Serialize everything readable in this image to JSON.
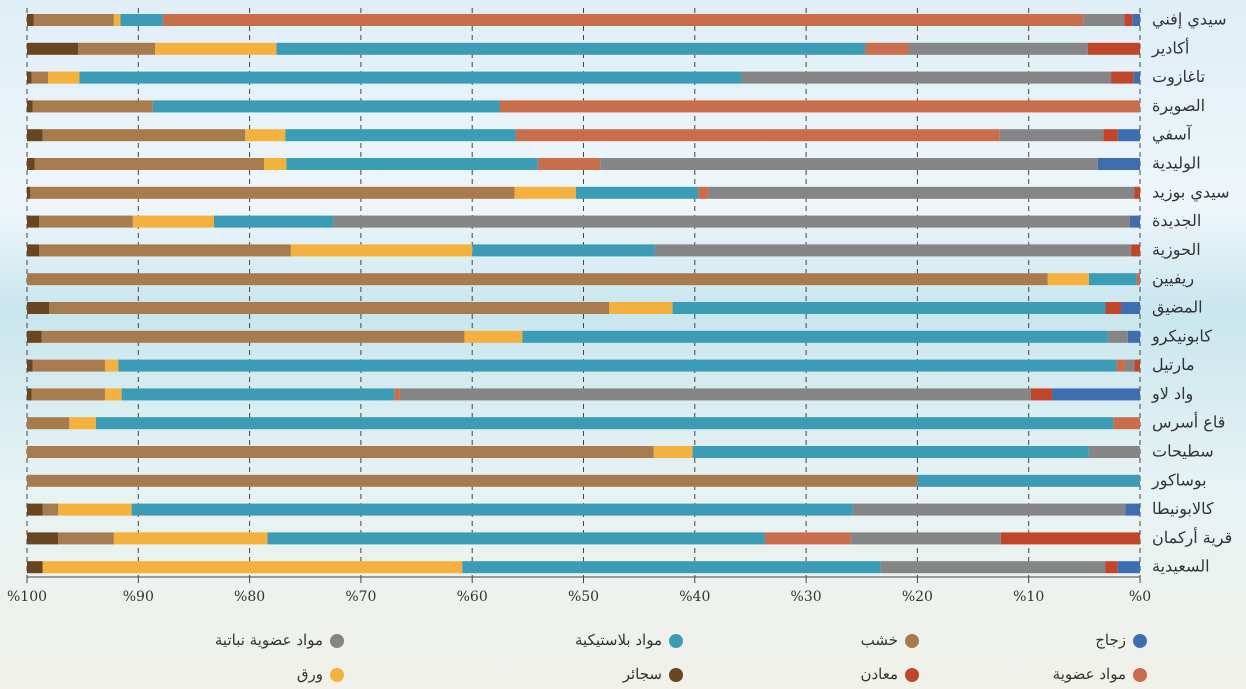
{
  "chart_data": {
    "type": "stacked-bar-horizontal",
    "x_reversed": true,
    "grid": true,
    "categories": [
      "سيدي إفني",
      "أكادير",
      "تاغازوت",
      "الصويرة",
      "آسفي",
      "الوليدية",
      "سيدي بوزيد",
      "الجديدة",
      "الحوزية",
      "ريفيين",
      "المضيق",
      "كابونيكرو",
      "مارتيل",
      "واد لاو",
      "قاع أسرس",
      "سطيحات",
      "بوساكور",
      "كالابونيطا",
      "قرية أركمان",
      "السعيدية"
    ],
    "xlim": [
      0,
      100
    ],
    "xticks": [
      {
        "value": 0,
        "label": "%0"
      },
      {
        "value": 10,
        "label": "%10"
      },
      {
        "value": 20,
        "label": "%20"
      },
      {
        "value": 30,
        "label": "%30"
      },
      {
        "value": 40,
        "label": "%40"
      },
      {
        "value": 50,
        "label": "%50"
      },
      {
        "value": 60,
        "label": "%60"
      },
      {
        "value": 70,
        "label": "%70"
      },
      {
        "value": 80,
        "label": "%80"
      },
      {
        "value": 90,
        "label": "%90"
      },
      {
        "value": 100,
        "label": "%100"
      }
    ],
    "series": [
      {
        "name": "زجاج",
        "color": "#3d6fb0",
        "values": [
          0.7,
          0,
          0.6,
          0,
          2.0,
          3.8,
          0,
          0.9,
          0,
          0,
          1.7,
          1.1,
          0,
          7.9,
          0,
          0,
          0,
          1.3,
          0,
          2.0
        ]
      },
      {
        "name": "معادن",
        "color": "#c0452a",
        "values": [
          0.7,
          4.7,
          2.0,
          0,
          1.3,
          0,
          0.5,
          0,
          0.8,
          0,
          1.4,
          0,
          0.5,
          1.9,
          0,
          0,
          0,
          0,
          12.5,
          1.1
        ]
      },
      {
        "name": "مواد عضوية نباتية",
        "color": "#858585",
        "values": [
          3.7,
          16.1,
          33.2,
          0,
          9.3,
          44.7,
          38.3,
          71.6,
          42.8,
          0,
          0,
          1.8,
          0.8,
          56.7,
          0,
          4.6,
          0,
          24.5,
          13.5,
          20.2
        ]
      },
      {
        "name": "مواد عضوية",
        "color": "#c96e4c",
        "values": [
          82.7,
          3.9,
          0,
          57.5,
          43.5,
          5.6,
          0.9,
          0,
          0,
          0.3,
          0,
          0,
          0.8,
          0.5,
          2.4,
          0,
          0,
          0,
          7.7,
          0
        ]
      },
      {
        "name": "مواد بلاستيكية",
        "color": "#3c9bb5",
        "values": [
          3.8,
          52.9,
          59.5,
          31.2,
          20.7,
          22.6,
          11.0,
          10.7,
          16.4,
          4.3,
          38.9,
          52.6,
          89.7,
          24.5,
          91.4,
          35.6,
          20.0,
          64.8,
          44.7,
          37.6
        ]
      },
      {
        "name": "ورق",
        "color": "#f5b13d",
        "values": [
          0.6,
          10.9,
          2.8,
          0,
          3.6,
          2.0,
          5.5,
          7.3,
          16.3,
          3.7,
          5.7,
          5.2,
          1.2,
          1.5,
          2.4,
          3.5,
          0,
          6.6,
          13.8,
          37.7
        ]
      },
      {
        "name": "خشب",
        "color": "#a87b4f",
        "values": [
          7.2,
          6.9,
          1.5,
          10.8,
          18.2,
          20.6,
          43.5,
          8.4,
          22.6,
          91.7,
          50.3,
          38.0,
          6.5,
          6.6,
          3.8,
          56.3,
          80.0,
          1.4,
          5.0,
          0
        ]
      },
      {
        "name": "سجائر",
        "color": "#6a4620",
        "values": [
          0.6,
          4.6,
          0.4,
          0.5,
          1.4,
          0.7,
          0.3,
          1.1,
          1.1,
          0,
          2.0,
          1.3,
          0.5,
          0.4,
          0,
          0,
          0,
          1.4,
          2.8,
          1.4
        ]
      }
    ]
  }
}
